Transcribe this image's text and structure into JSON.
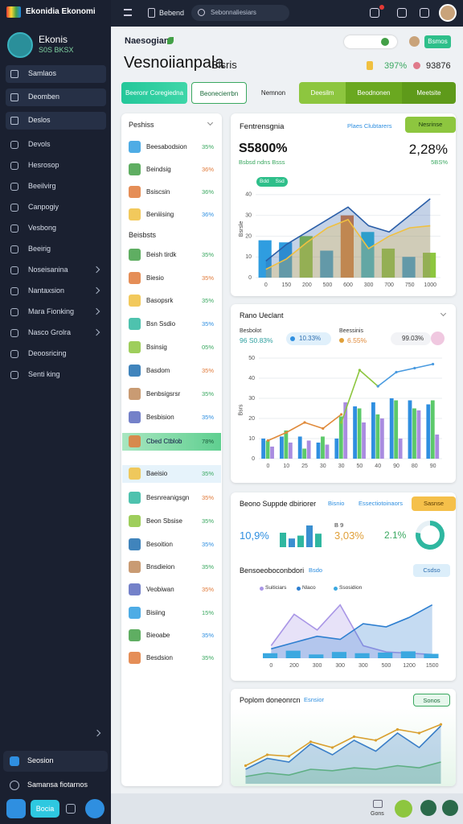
{
  "sidebar": {
    "brand": "Ekonidia Ekonomi",
    "profile_name": "Ekonis",
    "profile_sub": "S0S BKSX",
    "pinned": [
      "Samlaos",
      "Deomben",
      "Deslos"
    ],
    "menu": [
      "Devols",
      "Hesrosop",
      "Beeilvirg",
      "Canpogiy",
      "Vesbong",
      "Beeirig",
      "Noseisanina",
      "Nantaxsion",
      "Mara Fionking",
      "Nasco Grolra",
      "Deoosricing",
      "Senti king"
    ],
    "footer": [
      "Seosion",
      "Samansa fiotarnos"
    ],
    "footer_button": "Bocia"
  },
  "topbar": {
    "title": "Bebend",
    "search": "Sebonnaliesiars",
    "footer_label": "Gons"
  },
  "header": {
    "breadcrumb": "Naesogian",
    "title": "Vesnoiianpala",
    "subtitle": "Bisris",
    "stat_1": "397%",
    "stat_2": "93876",
    "button": "Bsmos"
  },
  "tabs": [
    "Beeronr Coregiedna",
    "Beonecierrbn",
    "Nemnon",
    "Deesilm",
    "Beodnonen",
    "Meetsite"
  ],
  "list": {
    "title": "Peshiss",
    "section": "Beisbsts",
    "groups": [
      [
        {
          "label": "Beesabodsion",
          "value": "35%"
        },
        {
          "label": "Beindsig",
          "value": "36%"
        },
        {
          "label": "Bsiscsin",
          "value": "36%"
        },
        {
          "label": "Beniiising",
          "value": "36%"
        }
      ],
      [
        {
          "label": "Beish tirdk",
          "value": "35%"
        },
        {
          "label": "Biesio",
          "value": "35%"
        },
        {
          "label": "Basopsrk",
          "value": "35%"
        },
        {
          "label": "Bsn Ssdio",
          "value": "35%"
        },
        {
          "label": "Bsinsig",
          "value": "05%"
        },
        {
          "label": "Basdom",
          "value": "35%"
        },
        {
          "label": "Benbsigsrsr",
          "value": "35%"
        },
        {
          "label": "Besbision",
          "value": "35%"
        }
      ],
      [
        {
          "label": "Cbed Ctblob",
          "value": "78%"
        }
      ],
      [
        {
          "label": "Baeisio",
          "value": "35%"
        },
        {
          "label": "Besnreanigsgn",
          "value": "35%"
        },
        {
          "label": "Beon Sbsise",
          "value": "35%"
        },
        {
          "label": "Besoition",
          "value": "35%"
        },
        {
          "label": "Bnsdieion",
          "value": "35%"
        },
        {
          "label": "Veobiwan",
          "value": "35%"
        },
        {
          "label": "Bisiing",
          "value": "15%"
        },
        {
          "label": "Bieoabe",
          "value": "35%"
        },
        {
          "label": "Besdsion",
          "value": "35%"
        }
      ]
    ]
  },
  "charts": [
    {
      "type": "bar",
      "title": "Fentrensgnia",
      "subtitle": "Plaes Clubtarers",
      "button": "Nesrinse",
      "big_value": "S5800%",
      "big_value_2": "2,28%",
      "note": "Bsbsd ndns Bsss",
      "note_2": "5BS%",
      "y_label": "Bsrsle",
      "grid": true,
      "categories": [
        "0",
        "150",
        "200",
        "500",
        "600",
        "300",
        "700",
        "750",
        "1000"
      ],
      "ylim": [
        0,
        45
      ],
      "yticks": [
        0,
        10,
        20,
        30,
        40
      ],
      "series": [
        {
          "type": "bar",
          "colors": [
            "#2f9de0",
            "#2f9de0",
            "#8dc63f",
            "#2f9de0",
            "#e07a3a",
            "#2fb7d8",
            "#8dc63f",
            "#2f9de0",
            "#8dc63f"
          ],
          "values": [
            18,
            17,
            20,
            13,
            30,
            22,
            14,
            10,
            12
          ]
        },
        {
          "name": "Bdd",
          "type": "area",
          "color": "#2a5ea8",
          "values": [
            8,
            16,
            22,
            28,
            34,
            25,
            22,
            30,
            38
          ]
        },
        {
          "name": "Ssd",
          "type": "area",
          "color": "#f0c040",
          "values": [
            4,
            9,
            17,
            24,
            28,
            14,
            20,
            24,
            25
          ]
        }
      ]
    },
    {
      "type": "bar",
      "title": "Rano Ueclant",
      "y_label": "Bsrs",
      "grid": true,
      "kpis": [
        {
          "label": "Besbolot",
          "value": "96 S0.83%"
        },
        {
          "value": "10.33%"
        },
        {
          "label": "Beessinis",
          "value": "6.55%"
        },
        {
          "value": "99.03%"
        }
      ],
      "categories": [
        "0",
        "10",
        "25",
        "30",
        "30",
        "50",
        "40",
        "90",
        "80",
        "90"
      ],
      "ylim": [
        0,
        50
      ],
      "yticks": [
        0,
        10,
        20,
        30,
        40,
        50
      ],
      "series": [
        {
          "type": "bar",
          "color": "#2f8fe0",
          "values": [
            10,
            11,
            11,
            8,
            10,
            26,
            28,
            30,
            29,
            27
          ]
        },
        {
          "type": "bar",
          "color": "#5cc96a",
          "values": [
            9,
            14,
            5,
            11,
            21,
            25,
            22,
            29,
            25,
            29
          ]
        },
        {
          "type": "bar",
          "color": "#a98ce0",
          "values": [
            6,
            8,
            9,
            7,
            28,
            18,
            20,
            10,
            24,
            12
          ]
        },
        {
          "type": "line",
          "color": "#e08a3a",
          "values": [
            9,
            13,
            18,
            15,
            22,
            null,
            null,
            null,
            null,
            null
          ]
        },
        {
          "type": "line",
          "color": "#8dc63f",
          "values": [
            null,
            null,
            null,
            null,
            18,
            44,
            36,
            null,
            null,
            null
          ]
        },
        {
          "type": "line",
          "color": "#4a9be0",
          "values": [
            null,
            null,
            null,
            null,
            null,
            null,
            36,
            43,
            45,
            47
          ]
        }
      ]
    },
    {
      "type": "donut",
      "title": "Beono Suppde dbiriorer",
      "subtitle": "Bisnio",
      "link": "Essectiotoinaors",
      "button": "Sasnse",
      "kpis": [
        "10,9%",
        "3,03%",
        "2.1%"
      ],
      "kpi_label": "B 9",
      "ylim": [
        0,
        50
      ],
      "mini_bars": [
        30,
        18,
        24,
        45,
        28
      ],
      "mini_colors": [
        "#2fb7a0",
        "#3a8fd0",
        "#2fb7a0",
        "#3a8fd0",
        "#2fb7a0"
      ],
      "values": [
        78,
        22
      ],
      "colors": [
        "#2fb7a0",
        "#e6f0f5"
      ]
    },
    {
      "type": "area",
      "title": "Bensoeoboconbdori",
      "subtitle": "Bsdo",
      "button": "Csdso",
      "categories": [
        "0",
        "200",
        "300",
        "300",
        "300",
        "500",
        "1200",
        "1500"
      ],
      "ylim": [
        0,
        100
      ],
      "series": [
        {
          "name": "Suiticiars",
          "type": "area",
          "color": "#a996e6",
          "values": [
            20,
            70,
            45,
            85,
            20,
            10,
            8,
            6
          ]
        },
        {
          "name": "Nlaco",
          "type": "area",
          "color": "#2e7fd0",
          "values": [
            15,
            25,
            35,
            30,
            55,
            50,
            65,
            85
          ]
        },
        {
          "name": "Ssosidion",
          "type": "bar",
          "color": "#3aa8e0",
          "values": [
            8,
            12,
            6,
            10,
            8,
            9,
            11,
            7
          ]
        }
      ]
    },
    {
      "type": "area",
      "title": "Poplom doneonrcn",
      "subtitle": "Esnsior",
      "button": "Sonos",
      "categories": [
        null,
        null,
        null,
        null,
        null,
        null,
        null,
        null,
        null,
        null
      ],
      "ylim": [
        0,
        100
      ],
      "series": [
        {
          "type": "area",
          "color": "#6cc26a",
          "values": [
            10,
            15,
            12,
            20,
            18,
            22,
            20,
            25,
            22,
            30
          ]
        },
        {
          "type": "area",
          "color": "#3b7fc8",
          "values": [
            20,
            35,
            30,
            55,
            40,
            60,
            45,
            70,
            50,
            80
          ]
        },
        {
          "type": "line",
          "color": "#d9a030",
          "values": [
            25,
            40,
            38,
            58,
            50,
            65,
            60,
            75,
            70,
            82
          ]
        }
      ]
    }
  ]
}
